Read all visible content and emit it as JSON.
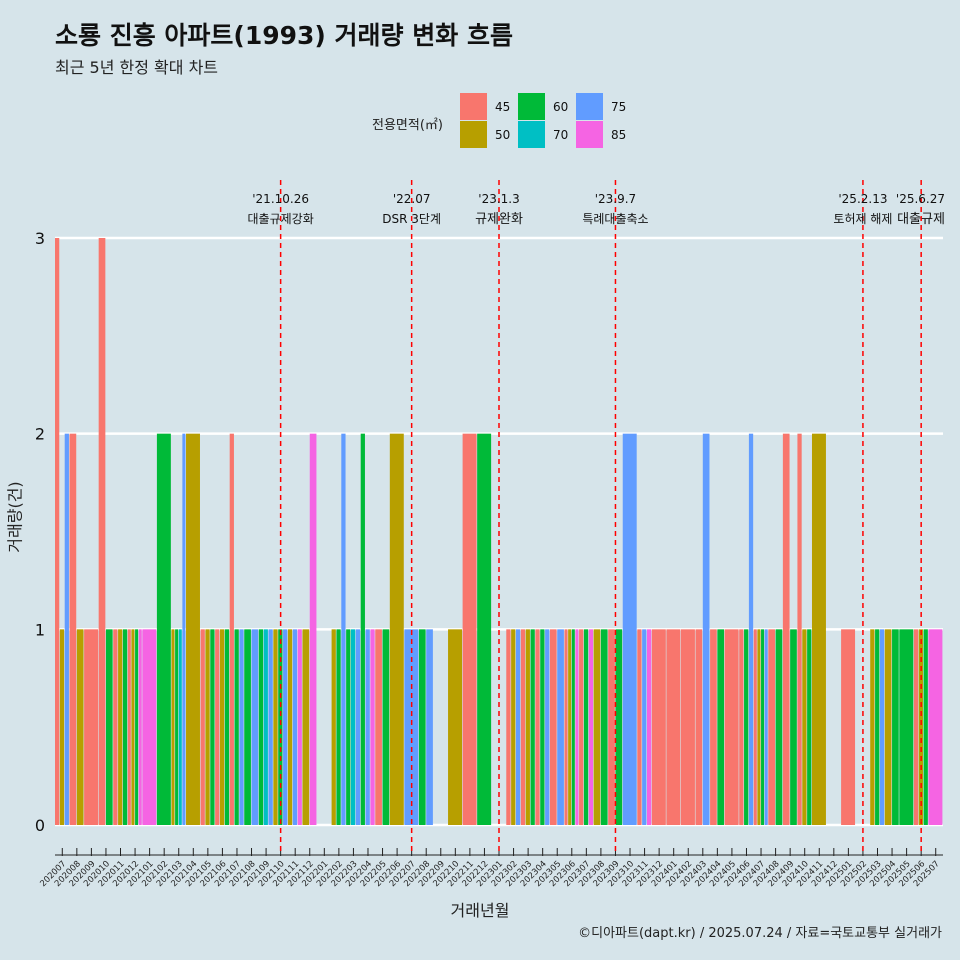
{
  "title": "소룡 진흥 아파트(1993) 거래량 변화 흐름",
  "subtitle": "최근 5년 한정 확대 차트",
  "caption": "©디아파트(dapt.kr) / 2025.07.24 / 자료=국토교통부 실거래가",
  "legend": {
    "title": "전용면적(㎡)",
    "items": [
      {
        "label": "45",
        "color": "#f8766d"
      },
      {
        "label": "50",
        "color": "#b79f00"
      },
      {
        "label": "60",
        "color": "#00ba38"
      },
      {
        "label": "70",
        "color": "#00bfc4"
      },
      {
        "label": "75",
        "color": "#619cff"
      },
      {
        "label": "85",
        "color": "#f564e3"
      }
    ]
  },
  "chart_data": {
    "type": "bar",
    "title": "소룡 진흥 아파트(1993) 거래량 변화 흐름",
    "xlabel": "거래년월",
    "ylabel": "거래량(건)",
    "ylim": [
      0,
      3
    ],
    "yticks": [
      0,
      1,
      2,
      3
    ],
    "categories": [
      "202007",
      "202008",
      "202009",
      "202010",
      "202011",
      "202012",
      "202101",
      "202102",
      "202103",
      "202104",
      "202105",
      "202106",
      "202107",
      "202108",
      "202109",
      "202110",
      "202111",
      "202112",
      "202201",
      "202202",
      "202203",
      "202204",
      "202205",
      "202206",
      "202207",
      "202208",
      "202209",
      "202210",
      "202211",
      "202212",
      "202301",
      "202302",
      "202303",
      "202304",
      "202305",
      "202306",
      "202307",
      "202308",
      "202309",
      "202310",
      "202311",
      "202312",
      "202401",
      "202402",
      "202403",
      "202404",
      "202405",
      "202406",
      "202407",
      "202408",
      "202409",
      "202410",
      "202411",
      "202412",
      "202501",
      "202502",
      "202503",
      "202504",
      "202505",
      "202506",
      "202507"
    ],
    "series": [
      {
        "name": "45",
        "color": "#f8766d",
        "values": [
          3,
          2,
          1,
          3,
          1,
          1,
          0,
          0,
          0,
          0,
          1,
          1,
          2,
          0,
          0,
          0,
          0,
          0,
          0,
          0,
          0,
          0,
          1,
          0,
          0,
          0,
          0,
          0,
          2,
          0,
          0,
          1,
          1,
          1,
          1,
          1,
          1,
          0,
          1,
          0,
          1,
          1,
          1,
          1,
          1,
          1,
          1,
          1,
          1,
          1,
          2,
          2,
          0,
          0,
          1,
          0,
          0,
          0,
          0,
          1,
          0
        ],
        "markers": [
          [
            0,
            3
          ],
          [
            1,
            2
          ],
          [
            2,
            1
          ],
          [
            3,
            3
          ],
          [
            4,
            1
          ],
          [
            5,
            1
          ],
          [
            10,
            1
          ],
          [
            11,
            1
          ],
          [
            12,
            2
          ],
          [
            22,
            1
          ],
          [
            28,
            2
          ],
          [
            31,
            1
          ],
          [
            32,
            1
          ],
          [
            33,
            1
          ],
          [
            34,
            1
          ],
          [
            35,
            1
          ],
          [
            36,
            1
          ],
          [
            38,
            1
          ],
          [
            40,
            1
          ],
          [
            41,
            1
          ],
          [
            42,
            1
          ],
          [
            43,
            1
          ],
          [
            44,
            1
          ],
          [
            45,
            1
          ],
          [
            46,
            1
          ],
          [
            47,
            1
          ],
          [
            48,
            1
          ],
          [
            49,
            1
          ],
          [
            50,
            2
          ],
          [
            51,
            2
          ],
          [
            54,
            1
          ],
          [
            59,
            1
          ]
        ]
      },
      {
        "name": "50",
        "color": "#b79f00",
        "values": [
          1,
          1,
          0,
          0,
          1,
          1,
          0,
          0,
          1,
          2,
          1,
          1,
          0,
          0,
          0,
          1,
          1,
          1,
          0,
          1,
          0,
          0,
          0,
          2,
          0,
          0,
          0,
          1,
          0,
          0,
          0,
          1,
          1,
          0,
          0,
          1,
          0,
          1,
          0,
          0,
          0,
          0,
          0,
          0,
          0,
          0,
          0,
          0,
          1,
          0,
          0,
          1,
          2,
          0,
          0,
          0,
          1,
          1,
          0,
          1,
          0
        ]
      },
      {
        "name": "60",
        "color": "#00ba38",
        "values": [
          0,
          0,
          0,
          1,
          1,
          1,
          0,
          2,
          1,
          0,
          1,
          1,
          1,
          1,
          1,
          1,
          0,
          0,
          0,
          1,
          1,
          2,
          1,
          0,
          0,
          1,
          0,
          0,
          0,
          2,
          0,
          0,
          1,
          1,
          0,
          1,
          1,
          1,
          1,
          0,
          0,
          0,
          0,
          0,
          0,
          1,
          0,
          1,
          1,
          1,
          1,
          1,
          0,
          0,
          0,
          0,
          1,
          1,
          1,
          1,
          0
        ]
      },
      {
        "name": "70",
        "color": "#00bfc4",
        "values": [
          0,
          0,
          0,
          0,
          0,
          0,
          0,
          0,
          1,
          0,
          0,
          0,
          0,
          0,
          1,
          0,
          0,
          0,
          0,
          0,
          1,
          0,
          0,
          0,
          0,
          0,
          0,
          0,
          0,
          0,
          0,
          0,
          0,
          0,
          0,
          0,
          0,
          0,
          0,
          0,
          0,
          0,
          0,
          0,
          0,
          0,
          0,
          0,
          0,
          0,
          0,
          0,
          0,
          0,
          0,
          0,
          0,
          0,
          0,
          0,
          0
        ]
      },
      {
        "name": "75",
        "color": "#619cff",
        "values": [
          2,
          0,
          0,
          0,
          0,
          0,
          0,
          0,
          2,
          0,
          0,
          0,
          1,
          1,
          1,
          1,
          1,
          0,
          0,
          2,
          1,
          1,
          0,
          0,
          1,
          1,
          0,
          0,
          0,
          0,
          0,
          1,
          0,
          1,
          1,
          0,
          0,
          0,
          0,
          2,
          1,
          0,
          0,
          0,
          2,
          0,
          0,
          2,
          1,
          0,
          0,
          0,
          0,
          0,
          0,
          0,
          1,
          0,
          0,
          0,
          0
        ]
      },
      {
        "name": "85",
        "color": "#f564e3",
        "values": [
          0,
          0,
          0,
          0,
          0,
          1,
          1,
          0,
          0,
          0,
          0,
          0,
          0,
          0,
          0,
          0,
          1,
          2,
          0,
          0,
          0,
          1,
          0,
          0,
          0,
          0,
          0,
          0,
          0,
          0,
          0,
          0,
          0,
          0,
          0,
          1,
          1,
          0,
          0,
          0,
          1,
          0,
          0,
          0,
          0,
          0,
          0,
          0,
          0,
          0,
          0,
          0,
          0,
          0,
          0,
          0,
          0,
          0,
          0,
          0,
          1
        ]
      }
    ],
    "events": [
      {
        "date": "'21.10.26",
        "label": "대출규제강화",
        "month": "202110"
      },
      {
        "date": "'22.07",
        "label": "DSR 3단계",
        "month": "202207"
      },
      {
        "date": "'23.1.3",
        "label": "규제완화",
        "month": "202301"
      },
      {
        "date": "'23.9.7",
        "label": "특례대출축소",
        "month": "202309"
      },
      {
        "date": "'25.2.13",
        "label": "토허제 해제",
        "month": "202502"
      },
      {
        "date": "'25.6.27",
        "label": "대출규제",
        "month": "202506"
      }
    ]
  }
}
